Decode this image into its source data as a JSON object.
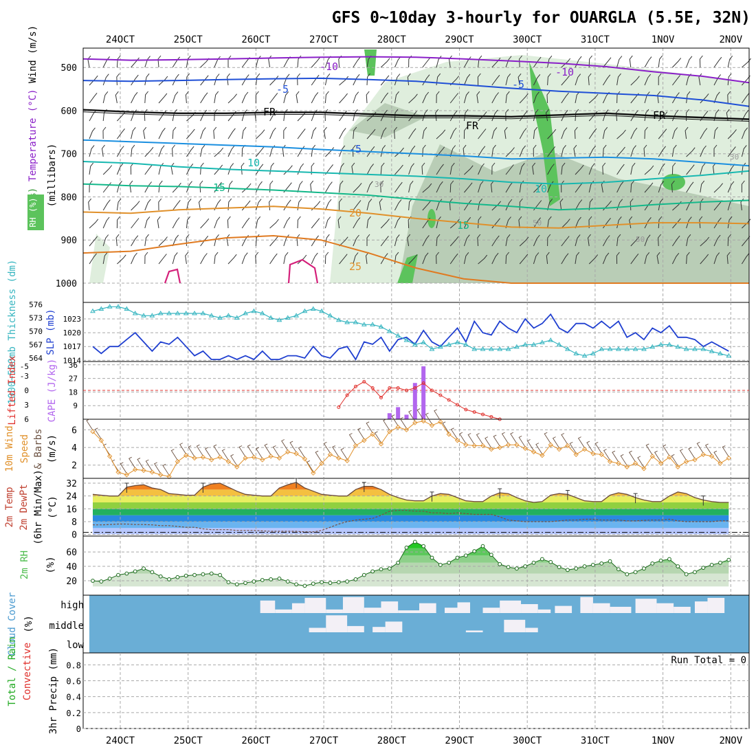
{
  "title": "GFS 0~10day 3-hourly for OUARGLA (5.5E, 32N)",
  "date_labels": [
    "24OCT",
    "25OCT",
    "26OCT",
    "27OCT",
    "28OCT",
    "29OCT",
    "30OCT",
    "31OCT",
    "1NOV",
    "2NOV"
  ],
  "colors": {
    "grid": "#a8a8a8",
    "rh_light": "#dfeedd",
    "rh_mid": "#b9cdb6",
    "rh_high": "#5cc35c",
    "slp": "#1f3fd0",
    "thickness": "#36b5c0",
    "lifted_index": "#e0302c",
    "cape": "#b266ee",
    "wind": "#e0902a",
    "rh2m": "#4cbc4c",
    "cloud_bg": "#6aaed6",
    "cloud_fill": "#f3f0f6",
    "precip_green": "#22aa22",
    "precip_red": "#e0302c"
  },
  "chart_data": [
    {
      "panel": "upper-air",
      "type": "contour",
      "ylabel": "(millibars)",
      "ylabel_parts": [
        "RH (%)",
        "Temperature (°C)",
        "Wind (m/s)"
      ],
      "rh_legend": "RH (%)",
      "yticks": [
        500,
        600,
        700,
        800,
        900,
        1000
      ],
      "y_range": [
        455,
        1000
      ],
      "contour_labels": [
        "-10",
        "-10",
        "-5",
        "-5",
        "FR",
        "FR",
        "FR",
        "-5",
        "10",
        "10",
        "15",
        "15",
        "20",
        "25",
        "30",
        "50",
        "50",
        "30"
      ],
      "isotherms": [
        {
          "label": "-10",
          "color": "#8a1fc8",
          "levels": [
            480,
            483,
            482,
            480,
            478,
            476,
            475,
            476,
            480,
            485,
            490,
            498,
            510,
            520,
            535
          ]
        },
        {
          "label": "-5",
          "color": "#1f4fd6",
          "levels": [
            530,
            532,
            530,
            528,
            526,
            525,
            528,
            532,
            540,
            548,
            555,
            560,
            565,
            575,
            590
          ]
        },
        {
          "label": "FR",
          "color": "#111111",
          "levels": [
            598,
            603,
            606,
            606,
            604,
            604,
            608,
            612,
            612,
            614,
            610,
            606,
            612,
            616,
            620
          ]
        },
        {
          "label": "-5",
          "color": "#1a8fe0",
          "levels": [
            668,
            672,
            676,
            680,
            684,
            690,
            695,
            700,
            705,
            712,
            710,
            708,
            712,
            720,
            728
          ]
        },
        {
          "label": "10",
          "color": "#17b8b0",
          "levels": [
            718,
            722,
            730,
            736,
            740,
            744,
            748,
            752,
            758,
            766,
            770,
            766,
            758,
            750,
            740
          ]
        },
        {
          "label": "15",
          "color": "#14b88a",
          "levels": [
            770,
            774,
            776,
            780,
            784,
            790,
            796,
            806,
            815,
            822,
            830,
            826,
            818,
            812,
            808
          ]
        },
        {
          "label": "20",
          "color": "#e0902a",
          "levels": [
            835,
            838,
            830,
            826,
            822,
            828,
            838,
            850,
            860,
            870,
            872,
            866,
            860,
            860,
            862
          ]
        },
        {
          "label": "25",
          "color": "#e07a20",
          "levels": [
            930,
            926,
            910,
            895,
            890,
            900,
            930,
            965,
            990,
            1000,
            1000,
            1000,
            1000,
            1000,
            1000
          ]
        }
      ]
    },
    {
      "panel": "slp-thickness",
      "type": "line",
      "ylabel_left": "1000~500mb Thickness (dm)",
      "ylabel_right": "SLP (mb)",
      "ticks_left": [
        576,
        573,
        570,
        567,
        564
      ],
      "ticks_right": [
        1023,
        1020,
        1017,
        1014
      ],
      "series": [
        {
          "name": "SLP (mb)",
          "values": [
            1017,
            1015.5,
            1017,
            1017,
            1018.5,
            1020,
            1018,
            1016,
            1018,
            1017.5,
            1019,
            1017,
            1015,
            1016,
            1014,
            1013,
            1015,
            1013,
            1015,
            1013.5,
            1016,
            1014,
            1013,
            1015,
            1015,
            1014.5,
            1017,
            1015,
            1014.5,
            1016.5,
            1017,
            1014,
            1018,
            1017.5,
            1019,
            1016,
            1018.5,
            1019,
            1017.5,
            1020.5,
            1018,
            1017,
            1019,
            1021,
            1018,
            1022.5,
            1020,
            1019.5,
            1022.5,
            1021,
            1020,
            1023,
            1021,
            1022,
            1024,
            1021,
            1020,
            1022,
            1022,
            1021,
            1022.5,
            1021,
            1022.5,
            1019,
            1020,
            1018.5,
            1021,
            1020,
            1021.5,
            1019,
            1019,
            1018.5,
            1017,
            1018,
            1017,
            1016
          ]
        },
        {
          "name": "Thickness (dm)",
          "values": [
            574.5,
            575,
            575.5,
            575.5,
            575,
            574,
            573.5,
            573.5,
            574,
            574,
            574,
            574,
            574,
            574,
            573.5,
            573,
            573.5,
            573,
            574,
            574.5,
            574,
            573,
            572.5,
            573,
            573.5,
            574.5,
            575,
            574.5,
            573.5,
            572.5,
            572,
            572,
            571.5,
            571.5,
            571,
            570,
            569,
            568,
            567,
            567.5,
            566,
            566.5,
            567,
            567.5,
            567,
            566,
            566,
            566,
            566,
            566,
            566.5,
            567,
            567,
            567.5,
            568,
            567,
            566,
            565,
            564.5,
            565,
            566,
            566,
            566,
            566,
            566,
            566,
            566.5,
            567,
            567,
            566.5,
            566,
            566,
            566,
            565.5,
            565,
            564.5
          ]
        }
      ]
    },
    {
      "panel": "cape-lifted-index",
      "type": "bar",
      "ylabel_left": "Lifted Index",
      "ylabel_right": "CAPE (J/kg)",
      "ticks_li": [
        "-5",
        "-3",
        "0",
        "3",
        "6"
      ],
      "ticks_cape": [
        36,
        27,
        18,
        9
      ],
      "cape_values": [
        0,
        0,
        0,
        0,
        0,
        0,
        0,
        0,
        0,
        0,
        0,
        0,
        0,
        0,
        0,
        0,
        0,
        0,
        0,
        0,
        0,
        0,
        0,
        0,
        0,
        0,
        0,
        0,
        0,
        0,
        0,
        0,
        0,
        0,
        0,
        0,
        0,
        0,
        0,
        0,
        0,
        0,
        0,
        0,
        0,
        0,
        0,
        0,
        0,
        0,
        0,
        0,
        0,
        0,
        0,
        0,
        0,
        0,
        0,
        0,
        0,
        0,
        0,
        0,
        0,
        0,
        0,
        0,
        0,
        0,
        0,
        0,
        0,
        0,
        0,
        0
      ],
      "cape_bars": [
        {
          "i": 35,
          "v": 4
        },
        {
          "i": 36,
          "v": 8
        },
        {
          "i": 37,
          "v": 3
        },
        {
          "i": 38,
          "v": 24
        },
        {
          "i": 39,
          "v": 35
        }
      ],
      "lifted_index": [
        {
          "i": 29,
          "v": 3.5
        },
        {
          "i": 30,
          "v": 1
        },
        {
          "i": 31,
          "v": -0.8
        },
        {
          "i": 32,
          "v": -1.8
        },
        {
          "i": 33,
          "v": -0.5
        },
        {
          "i": 34,
          "v": 1.5
        },
        {
          "i": 35,
          "v": -0.5
        },
        {
          "i": 36,
          "v": -0.5
        },
        {
          "i": 37,
          "v": 0
        },
        {
          "i": 38,
          "v": -0.5
        },
        {
          "i": 39,
          "v": -1.5
        },
        {
          "i": 40,
          "v": 0
        },
        {
          "i": 41,
          "v": 1
        },
        {
          "i": 42,
          "v": 2
        },
        {
          "i": 43,
          "v": 3
        },
        {
          "i": 44,
          "v": 4
        },
        {
          "i": 45,
          "v": 4.5
        },
        {
          "i": 46,
          "v": 5
        },
        {
          "i": 47,
          "v": 5.5
        },
        {
          "i": 48,
          "v": 6
        }
      ]
    },
    {
      "panel": "10m-wind",
      "type": "line",
      "ylabel": "10m Wind Speed (m/s) & Barbs",
      "ylabel_parts": [
        "10m Wind",
        "Speed",
        "& Barbs",
        "(m/s)"
      ],
      "yticks": [
        2,
        4,
        6
      ],
      "y_range": [
        0.5,
        7.2
      ],
      "values": [
        5.8,
        4.8,
        3,
        1.2,
        0.9,
        1.5,
        1.4,
        1.2,
        0.9,
        0.7,
        2.4,
        3.1,
        2.8,
        2.9,
        2.6,
        2.9,
        2.4,
        1.8,
        2.8,
        2.9,
        2.6,
        3,
        2.8,
        3.5,
        3.3,
        2.7,
        1.1,
        2.2,
        3.2,
        2.8,
        2.5,
        4.2,
        4.8,
        5.5,
        4.4,
        5.8,
        6.3,
        6,
        6.8,
        7,
        6.5,
        6.9,
        5.5,
        4.8,
        4.3,
        4.2,
        4.2,
        3.8,
        4,
        4.3,
        4.3,
        3.9,
        3.5,
        3.1,
        4.3,
        3.8,
        4.2,
        3.2,
        3.8,
        3.3,
        3.2,
        2.4,
        2.2,
        1.8,
        2.2,
        1.6,
        3,
        2.2,
        2.9,
        1.8,
        2.4,
        2.6,
        3.2,
        3,
        2.2,
        2.8
      ]
    },
    {
      "panel": "2m-temp",
      "type": "area",
      "ylabel": "2m Temp 2m DewPt (6hr Min/Max) (°C)",
      "ylabel_parts": [
        "2m Temp",
        "2m DewPt",
        "(6hr Min/Max)",
        "(°C)"
      ],
      "yticks": [
        32,
        24,
        16,
        8,
        0
      ],
      "y_range": [
        -1,
        35
      ],
      "temp": [
        25,
        24.5,
        24,
        24,
        29.5,
        30.5,
        31,
        29,
        28,
        25.5,
        25,
        24.5,
        24.5,
        29.5,
        31.5,
        32,
        29.5,
        27,
        25,
        24.5,
        24,
        24,
        29,
        31,
        32.5,
        29,
        27,
        25,
        24.5,
        24,
        24,
        28,
        30,
        30,
        28,
        25,
        23,
        21.5,
        21,
        21,
        24,
        25.5,
        25,
        23,
        21,
        20.5,
        20.5,
        24,
        26,
        25.5,
        23,
        21,
        20,
        20.5,
        24.5,
        25.5,
        25,
        23,
        21,
        20.5,
        20.5,
        24.5,
        26,
        25,
        23,
        21.5,
        20.5,
        20.5,
        24,
        26.5,
        25.5,
        23,
        21.5,
        20.5,
        20,
        20
      ],
      "dewpt": [
        6,
        6,
        6.2,
        6.5,
        6.5,
        6.2,
        6.2,
        6,
        5.5,
        5.5,
        5,
        4.5,
        4.5,
        3.5,
        3,
        3,
        3,
        2.5,
        2.5,
        2.5,
        2.2,
        2,
        2,
        2,
        2,
        1.6,
        1.6,
        2.5,
        4.5,
        6.5,
        8,
        9,
        9.5,
        10,
        12,
        14.5,
        15,
        15,
        14.5,
        14.5,
        13.5,
        13.5,
        13,
        13.5,
        13,
        12.5,
        12.5,
        12.5,
        11,
        9,
        8.5,
        8,
        8,
        8,
        8,
        8.5,
        9,
        9,
        9.5,
        9.5,
        9,
        9,
        9,
        8.5,
        8.5,
        8.8,
        9,
        9,
        9.5,
        8.5,
        8,
        8,
        8,
        8,
        8.5,
        8.5
      ]
    },
    {
      "panel": "2m-rh",
      "type": "area",
      "ylabel": "2m RH (%)",
      "ylabel_parts": [
        "2m RH",
        "(%)"
      ],
      "yticks": [
        20,
        40,
        60
      ],
      "y_range": [
        0,
        82
      ],
      "values": [
        20,
        19,
        23,
        28,
        30,
        33,
        37,
        32,
        26,
        22,
        25,
        27,
        28,
        29,
        30,
        28,
        18,
        15,
        17,
        19,
        21,
        22,
        23,
        19,
        15,
        13,
        16,
        18,
        17,
        18,
        19,
        22,
        28,
        33,
        36,
        37,
        45,
        66,
        74,
        68,
        52,
        42,
        45,
        52,
        55,
        61,
        68,
        56,
        43,
        39,
        37,
        40,
        45,
        50,
        46,
        39,
        35,
        37,
        40,
        42,
        44,
        47,
        36,
        29,
        32,
        37,
        44,
        48,
        50,
        40,
        29,
        32,
        38,
        42,
        45,
        49
      ]
    },
    {
      "panel": "cloud-cover",
      "type": "heatmap",
      "ylabel": "Cloud Cover (%)",
      "levels": [
        "high",
        "middle",
        "low"
      ],
      "high": [
        0,
        0,
        0,
        0,
        0,
        0,
        0,
        0,
        0,
        0,
        0,
        0,
        0,
        0,
        0,
        0,
        0,
        0,
        0,
        0,
        0,
        0,
        0,
        0,
        0,
        0,
        0,
        0,
        0,
        0,
        0,
        0,
        0,
        0,
        0,
        0,
        0,
        0,
        0,
        0,
        0,
        0,
        0,
        0,
        0,
        0,
        0,
        0,
        0,
        0,
        0,
        0,
        0,
        0,
        0,
        0,
        0,
        0,
        0,
        0,
        0,
        0,
        0,
        0,
        0,
        0,
        0,
        0,
        0,
        0,
        0,
        0,
        0,
        0,
        0,
        0
      ],
      "high_blocks": [
        [
          41.5,
          45,
          0.7
        ],
        [
          45,
          49,
          0.2
        ],
        [
          49,
          52,
          0.55
        ],
        [
          52,
          57,
          0.85
        ],
        [
          57,
          61,
          0.2
        ],
        [
          61,
          66,
          0.9
        ],
        [
          66,
          70,
          0.3
        ],
        [
          70,
          74,
          0.65
        ],
        [
          74,
          79,
          0.15
        ],
        [
          79,
          83,
          0.55
        ],
        [
          85,
          88,
          0.3
        ],
        [
          88,
          91,
          0.6
        ],
        [
          94,
          98,
          0.3
        ],
        [
          98,
          103,
          0.7
        ],
        [
          103,
          107,
          0.5
        ],
        [
          107,
          110,
          0.2
        ],
        [
          111,
          115,
          0.4
        ],
        [
          117,
          120,
          0.9
        ],
        [
          120,
          124,
          0.55
        ],
        [
          124,
          129,
          0.35
        ],
        [
          130,
          135,
          0.8
        ],
        [
          135,
          139,
          0.55
        ],
        [
          139,
          143,
          0.35
        ],
        [
          144,
          147,
          0.65
        ],
        [
          147,
          151,
          0.85
        ]
      ],
      "middle_blocks": [
        [
          53,
          57,
          0.25
        ],
        [
          57,
          62,
          0.95
        ],
        [
          62,
          66,
          0.35
        ],
        [
          68,
          71,
          0.3
        ],
        [
          71,
          75,
          0.6
        ],
        [
          90,
          94,
          0.1
        ],
        [
          99,
          104,
          0.7
        ],
        [
          104,
          107,
          0.25
        ]
      ]
    },
    {
      "panel": "precip",
      "type": "bar",
      "ylabel": "3hr Precip (mm)",
      "ylabel_parts": [
        "Total / Rain",
        "Convective"
      ],
      "yticks": [
        0,
        0.2,
        0.4,
        0.6,
        0.8
      ],
      "ylim": [
        0,
        0.95
      ],
      "run_total": "Run Total = 0",
      "values": [
        0,
        0,
        0,
        0,
        0,
        0,
        0,
        0,
        0,
        0,
        0,
        0,
        0,
        0,
        0,
        0,
        0,
        0,
        0,
        0,
        0,
        0,
        0,
        0,
        0,
        0,
        0,
        0,
        0,
        0,
        0,
        0,
        0,
        0,
        0,
        0,
        0,
        0,
        0,
        0,
        0,
        0,
        0,
        0,
        0,
        0,
        0,
        0,
        0,
        0,
        0,
        0,
        0,
        0,
        0,
        0,
        0,
        0,
        0,
        0,
        0,
        0,
        0,
        0,
        0,
        0,
        0,
        0,
        0,
        0,
        0,
        0,
        0,
        0,
        0,
        0
      ]
    }
  ]
}
